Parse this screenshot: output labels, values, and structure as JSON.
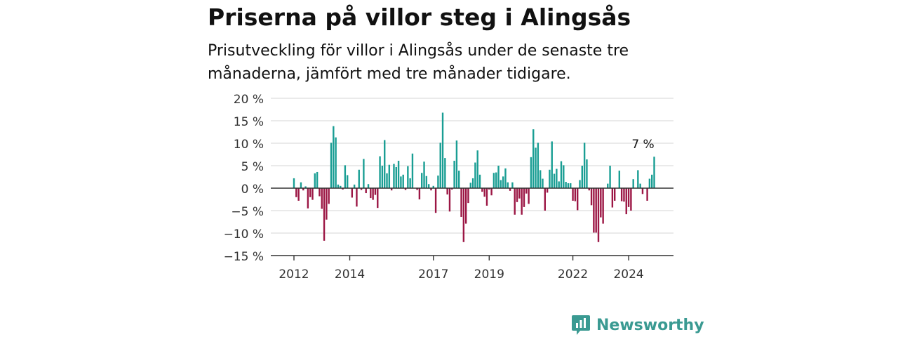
{
  "header": {
    "title": "Priserna på villor steg i Alingsås",
    "subtitle": "Prisutveckling för villor i Alingsås under de senaste tre månaderna, jämfört med tre månader tidigare."
  },
  "brand": {
    "name": "Newsworthy",
    "color": "#3a9a92"
  },
  "colors": {
    "positive": "#1a9e94",
    "negative": "#9c1745",
    "grid": "#dddddd",
    "axis": "#333333"
  },
  "chart_data": {
    "type": "bar",
    "title": "Priserna på villor steg i Alingsås",
    "subtitle": "Prisutveckling för villor i Alingsås under de senaste tre månaderna, jämfört med tre månader tidigare.",
    "xlabel": "",
    "ylabel": "",
    "ylim": [
      -15,
      20
    ],
    "yticks": [
      20,
      15,
      10,
      5,
      0,
      -5,
      -10,
      -15
    ],
    "ytick_labels": [
      "20 %",
      "15 %",
      "10 %",
      "5 %",
      "0 %",
      "−5 %",
      "−10 %",
      "−15 %"
    ],
    "xticks": [
      "2012",
      "2014",
      "2017",
      "2019",
      "2022",
      "2024"
    ],
    "xtick_index": [
      0,
      24,
      60,
      84,
      120,
      144
    ],
    "grid": true,
    "last_value_label": "7 %",
    "frequency": "monthly",
    "start": "2012-01",
    "values": [
      2.2,
      -2,
      -2.8,
      1.3,
      -0.5,
      0.4,
      -4.5,
      -2,
      -2.6,
      3.3,
      3.6,
      -1.8,
      -4.6,
      -11.7,
      -7,
      -3.5,
      10.1,
      13.8,
      11.3,
      0.8,
      0.5,
      -0.3,
      5.1,
      2.9,
      0,
      -2.1,
      0.8,
      -4.1,
      4.1,
      -0.4,
      6.5,
      -1.1,
      0.9,
      -2.2,
      -2.6,
      -1.5,
      -4.4,
      7.1,
      5,
      10.7,
      3.3,
      5.2,
      -0.5,
      5.4,
      4.7,
      6.1,
      2.6,
      3,
      -0.4,
      4.9,
      2.2,
      7.7,
      0,
      -0.4,
      -2.5,
      3.4,
      5.9,
      2.7,
      0.9,
      -0.5,
      0.5,
      -5.5,
      2.8,
      10.1,
      16.8,
      6.7,
      -1.4,
      -5.2,
      -0.3,
      6.1,
      10.6,
      3.9,
      -6.4,
      -12,
      -7.9,
      -3.3,
      1.2,
      2.2,
      5.7,
      8.4,
      3,
      -0.8,
      -1.9,
      -3.9,
      -0.3,
      -1.6,
      3.4,
      3.5,
      5,
      1.8,
      2.6,
      4.4,
      1.3,
      -0.6,
      1.3,
      -5.9,
      -3.1,
      -2.3,
      -5.9,
      -4.2,
      -1.2,
      -3.5,
      6.9,
      13.1,
      9,
      10.1,
      4,
      2.1,
      -5,
      -1,
      4.1,
      10.4,
      3.2,
      4.3,
      1.5,
      6,
      5.1,
      1.4,
      1.1,
      1.1,
      -2.8,
      -2.9,
      -4.9,
      1.8,
      5,
      10.1,
      6.4,
      -0.5,
      -3.8,
      -9.9,
      -9.9,
      -12,
      -6.5,
      -7.9,
      0,
      1,
      5,
      -4.3,
      -2.8,
      0,
      3.9,
      -2.9,
      -3,
      -5.8,
      -4.2,
      -5,
      2,
      0,
      4,
      1,
      -1.3,
      0,
      -2.8,
      2.1,
      3,
      7
    ]
  }
}
